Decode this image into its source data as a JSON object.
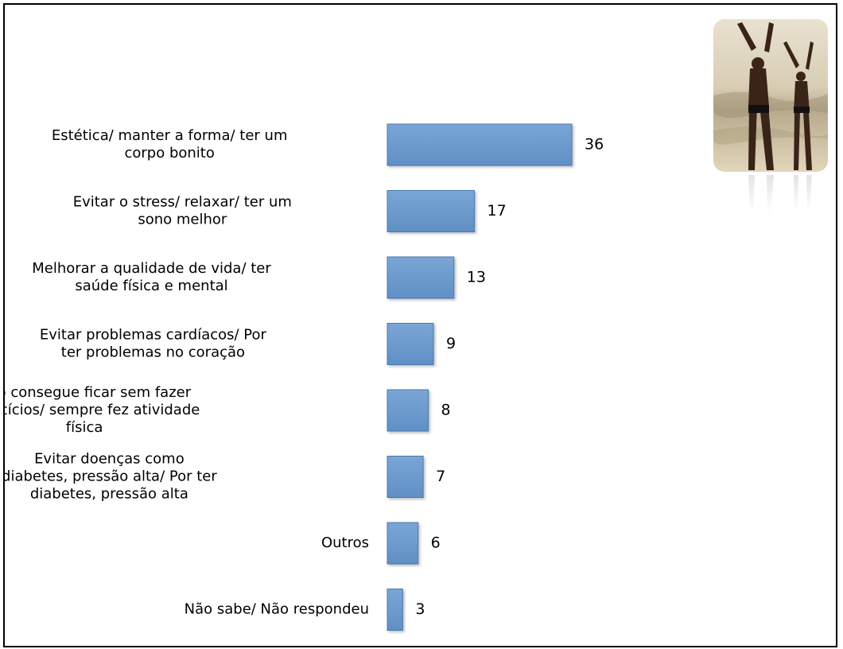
{
  "chart_data": {
    "type": "bar",
    "orientation": "horizontal",
    "categories": [
      [
        "Estética/ manter a forma/ ter um",
        "corpo bonito"
      ],
      [
        "Evitar o stress/ relaxar/ ter um",
        "sono melhor"
      ],
      [
        "Melhorar a qualidade de vida/ ter",
        "saúde física e mental"
      ],
      [
        "Evitar problemas cardíacos/ Por",
        "ter problemas no coração"
      ],
      [
        "Não consegue ficar sem fazer",
        "exercícios/ sempre fez atividade",
        "física"
      ],
      [
        "Evitar doenças como",
        "diabetes, pressão alta/ Por ter",
        "diabetes, pressão alta"
      ],
      [
        "Outros"
      ],
      [
        "Não sabe/ Não respondeu"
      ]
    ],
    "values": [
      36,
      17,
      13,
      9,
      8,
      7,
      6,
      3
    ],
    "value_labels": [
      "36",
      "17",
      "13",
      "9",
      "8",
      "7",
      "6",
      "3"
    ],
    "xlim": [
      0,
      36
    ],
    "grid": false,
    "legend": "none",
    "bar_color": "#6699cc",
    "bar_edge_color": "#4a7ab0"
  },
  "photo": {
    "icon": "stretching-people-photo"
  }
}
